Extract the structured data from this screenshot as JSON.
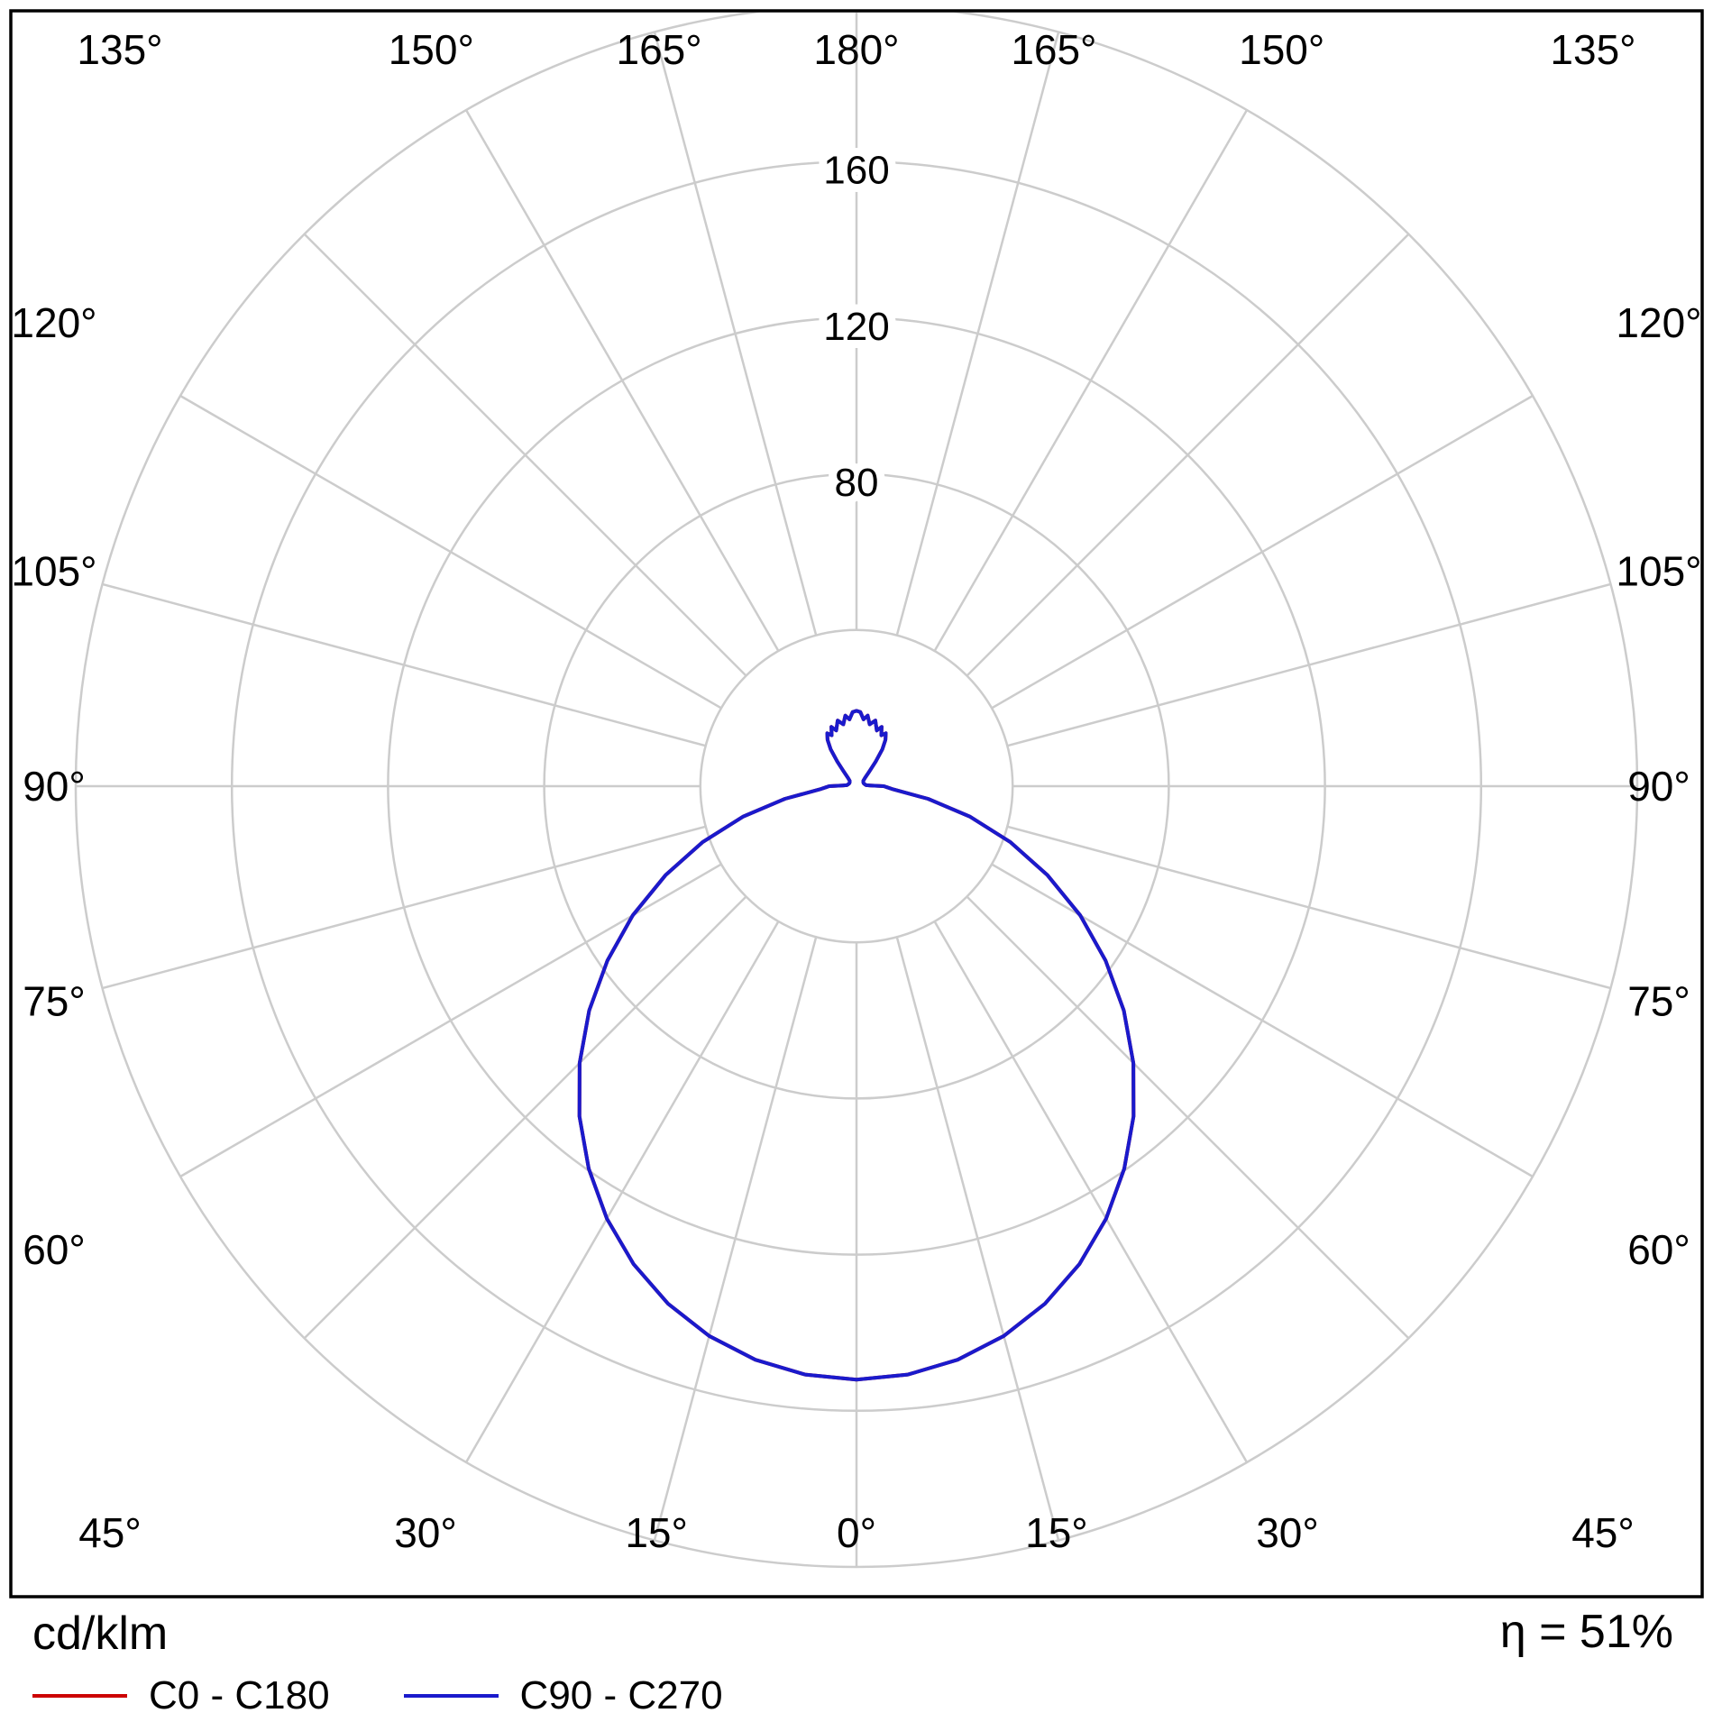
{
  "footer": {
    "unit_label": "cd/klm",
    "efficiency_label": "η = 51%",
    "legend": [
      {
        "label": "C0 - C180",
        "color": "#cc0000"
      },
      {
        "label": "C90 - C270",
        "color": "#1a1acc"
      }
    ]
  },
  "chart_data": {
    "type": "line",
    "polar": true,
    "subtype": "luminous-intensity-distribution",
    "units": "cd/klm",
    "efficiency_percent": 51,
    "grid": {
      "rings": [
        40,
        80,
        120,
        160,
        200
      ],
      "ring_labels": [
        80,
        120,
        160
      ],
      "angle_step_deg": 15,
      "angle_labels_deg": [
        0,
        15,
        30,
        45,
        60,
        75,
        90,
        105,
        120,
        135,
        150,
        165,
        180
      ],
      "angle_label_suffix": "°",
      "ring_color": "#cccccc",
      "max_value": 200
    },
    "series": [
      {
        "name": "C0 - C180",
        "color": "#cc0000",
        "points": [
          [
            0,
            152
          ],
          [
            5,
            151.3
          ],
          [
            10,
            149.2
          ],
          [
            15,
            145.8
          ],
          [
            20,
            141.1
          ],
          [
            25,
            135.1
          ],
          [
            30,
            127.9
          ],
          [
            35,
            119.6
          ],
          [
            40,
            110.4
          ],
          [
            45,
            100.3
          ],
          [
            50,
            89.4
          ],
          [
            55,
            77.9
          ],
          [
            60,
            66.2
          ],
          [
            65,
            54.0
          ],
          [
            70,
            42.0
          ],
          [
            75,
            30.0
          ],
          [
            80,
            18.6
          ],
          [
            85,
            9.5
          ],
          [
            88,
            7.8
          ],
          [
            90,
            7.0
          ],
          [
            93,
            3.5
          ],
          [
            96,
            2.5
          ],
          [
            102,
            2.2
          ],
          [
            110,
            2.0
          ],
          [
            120,
            2.0
          ],
          [
            128,
            2.2
          ],
          [
            134,
            3.0
          ],
          [
            139,
            5.0
          ],
          [
            142,
            8.0
          ],
          [
            145,
            11.5
          ],
          [
            148,
            14.0
          ],
          [
            151,
            15.5
          ],
          [
            154,
            14.5
          ],
          [
            157,
            16.5
          ],
          [
            160,
            15.2
          ],
          [
            164,
            17.5
          ],
          [
            168,
            16.2
          ],
          [
            171,
            18.3
          ],
          [
            174,
            17.2
          ],
          [
            177,
            19.0
          ],
          [
            180,
            19.3
          ]
        ]
      },
      {
        "name": "C90 - C270",
        "color": "#1a1acc",
        "points": [
          [
            0,
            152
          ],
          [
            5,
            151.3
          ],
          [
            10,
            149.2
          ],
          [
            15,
            145.8
          ],
          [
            20,
            141.1
          ],
          [
            25,
            135.1
          ],
          [
            30,
            127.9
          ],
          [
            35,
            119.6
          ],
          [
            40,
            110.4
          ],
          [
            45,
            100.3
          ],
          [
            50,
            89.4
          ],
          [
            55,
            77.9
          ],
          [
            60,
            66.2
          ],
          [
            65,
            54.0
          ],
          [
            70,
            42.0
          ],
          [
            75,
            30.0
          ],
          [
            80,
            18.6
          ],
          [
            85,
            9.5
          ],
          [
            88,
            7.8
          ],
          [
            90,
            7.0
          ],
          [
            93,
            3.5
          ],
          [
            96,
            2.5
          ],
          [
            102,
            2.2
          ],
          [
            110,
            2.0
          ],
          [
            120,
            2.0
          ],
          [
            128,
            2.2
          ],
          [
            134,
            3.0
          ],
          [
            139,
            5.0
          ],
          [
            142,
            8.0
          ],
          [
            145,
            11.5
          ],
          [
            148,
            14.0
          ],
          [
            151,
            15.5
          ],
          [
            154,
            14.5
          ],
          [
            157,
            16.5
          ],
          [
            160,
            15.2
          ],
          [
            164,
            17.5
          ],
          [
            168,
            16.2
          ],
          [
            171,
            18.3
          ],
          [
            174,
            17.2
          ],
          [
            177,
            19.0
          ],
          [
            180,
            19.3
          ]
        ]
      }
    ]
  }
}
